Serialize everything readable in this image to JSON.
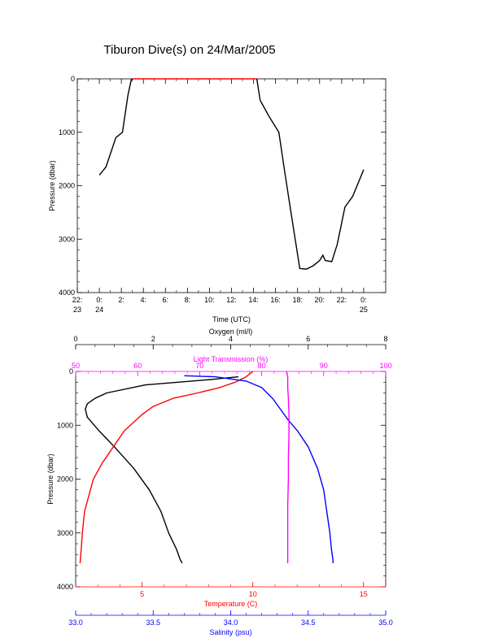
{
  "title": "Tiburon Dive(s) on 24/Mar/2005",
  "chart_data": [
    {
      "type": "line",
      "name": "dive-depth-vs-time",
      "xlabel": "Time (UTC)",
      "ylabel": "Pressure (dbar)",
      "xlim": [
        -2,
        26
      ],
      "ylim": [
        4000,
        0
      ],
      "x_ticks": [
        {
          "value": -2,
          "label1": "22:",
          "label2": "23"
        },
        {
          "value": 0,
          "label1": "0:",
          "label2": "24"
        },
        {
          "value": 2,
          "label1": "2:",
          "label2": ""
        },
        {
          "value": 4,
          "label1": "4:",
          "label2": ""
        },
        {
          "value": 6,
          "label1": "6:",
          "label2": ""
        },
        {
          "value": 8,
          "label1": "8:",
          "label2": ""
        },
        {
          "value": 10,
          "label1": "10:",
          "label2": ""
        },
        {
          "value": 12,
          "label1": "12:",
          "label2": ""
        },
        {
          "value": 14,
          "label1": "14:",
          "label2": ""
        },
        {
          "value": 16,
          "label1": "16:",
          "label2": ""
        },
        {
          "value": 18,
          "label1": "18:",
          "label2": ""
        },
        {
          "value": 20,
          "label1": "20:",
          "label2": ""
        },
        {
          "value": 22,
          "label1": "22:",
          "label2": ""
        },
        {
          "value": 24,
          "label1": "0:",
          "label2": "25"
        }
      ],
      "y_ticks": [
        0,
        1000,
        2000,
        3000,
        4000
      ],
      "series": [
        {
          "color": "#000000",
          "x": [
            0.0,
            0.6,
            1.5,
            2.1,
            2.6,
            2.9,
            3.0
          ],
          "y": [
            1800,
            1650,
            1100,
            1000,
            300,
            20,
            0
          ]
        },
        {
          "color": "#ff0000",
          "x": [
            3.0,
            14.3
          ],
          "y": [
            0,
            0
          ]
        },
        {
          "color": "#000000",
          "x": [
            14.3,
            14.6,
            15.4,
            16.3,
            16.8,
            17.4,
            18.2,
            18.8,
            19.4,
            20.0,
            20.3,
            20.5,
            21.1,
            21.6,
            22.3,
            23.0,
            24.0
          ],
          "y": [
            0,
            400,
            700,
            1000,
            1700,
            2500,
            3550,
            3560,
            3500,
            3400,
            3300,
            3400,
            3420,
            3100,
            2400,
            2200,
            1700
          ]
        }
      ]
    },
    {
      "type": "line",
      "name": "ctd-profiles",
      "ylabel": "Pressure (dbar)",
      "ylim": [
        4000,
        0
      ],
      "y_ticks": [
        0,
        1000,
        2000,
        3000,
        4000
      ],
      "axes": [
        {
          "key": "oxygen",
          "label": "Oxygen (ml/l)",
          "position": "top",
          "color": "#000000",
          "min": 0,
          "max": 8,
          "ticks": [
            0,
            2,
            4,
            6,
            8
          ],
          "minor_step": 0.5
        },
        {
          "key": "transmission",
          "label": "Light Transmission (%)",
          "position": "top",
          "color": "#ff00ff",
          "min": 50,
          "max": 100,
          "ticks": [
            50,
            60,
            70,
            80,
            90,
            100
          ],
          "minor_step": 2
        },
        {
          "key": "temperature",
          "label": "Temperature (C)",
          "position": "bottom",
          "color": "#ff0000",
          "min": 2,
          "max": 16,
          "ticks": [
            5,
            10,
            15
          ],
          "minor_step": 1
        },
        {
          "key": "salinity",
          "label": "Salinity (psu)",
          "position": "bottom",
          "color": "#0000ff",
          "min": 33.0,
          "max": 35.0,
          "ticks": [
            "33.0",
            "33.5",
            "34.0",
            "34.5",
            "35.0"
          ],
          "minor_step": 0.1
        }
      ],
      "series": [
        {
          "axis": "oxygen",
          "color": "#000000",
          "value": [
            4.2,
            3.5,
            1.8,
            0.8,
            0.5,
            0.3,
            0.25,
            0.3,
            0.6,
            1.0,
            1.5,
            1.9,
            2.2,
            2.4,
            2.6,
            2.7,
            2.75
          ],
          "pressure": [
            100,
            150,
            250,
            400,
            500,
            600,
            700,
            850,
            1100,
            1400,
            1800,
            2200,
            2600,
            3000,
            3300,
            3500,
            3560
          ]
        },
        {
          "axis": "temperature",
          "color": "#ff0000",
          "value": [
            10.0,
            9.7,
            9.2,
            8.5,
            7.5,
            6.4,
            5.5,
            5.0,
            4.2,
            3.7,
            3.2,
            2.8,
            2.6,
            2.4,
            2.3,
            2.25,
            2.2
          ],
          "pressure": [
            0,
            100,
            200,
            300,
            400,
            500,
            650,
            800,
            1100,
            1400,
            1700,
            2000,
            2300,
            2600,
            3000,
            3300,
            3560
          ]
        },
        {
          "axis": "salinity",
          "color": "#0000ff",
          "value": [
            33.7,
            33.9,
            34.1,
            34.2,
            34.27,
            34.32,
            34.37,
            34.43,
            34.5,
            34.56,
            34.6,
            34.62,
            34.64,
            34.65,
            34.66,
            34.66
          ],
          "pressure": [
            80,
            100,
            180,
            300,
            500,
            700,
            900,
            1100,
            1400,
            1800,
            2200,
            2600,
            3000,
            3300,
            3500,
            3560
          ]
        },
        {
          "axis": "transmission",
          "color": "#ff00ff",
          "value": [
            84.0,
            84.2,
            84.2,
            84.3,
            84.4,
            84.4,
            84.3,
            84.3,
            84.2,
            84.2,
            84.2,
            84.2
          ],
          "pressure": [
            0,
            100,
            300,
            500,
            800,
            1200,
            1600,
            2000,
            2500,
            3000,
            3400,
            3560
          ]
        }
      ]
    }
  ]
}
